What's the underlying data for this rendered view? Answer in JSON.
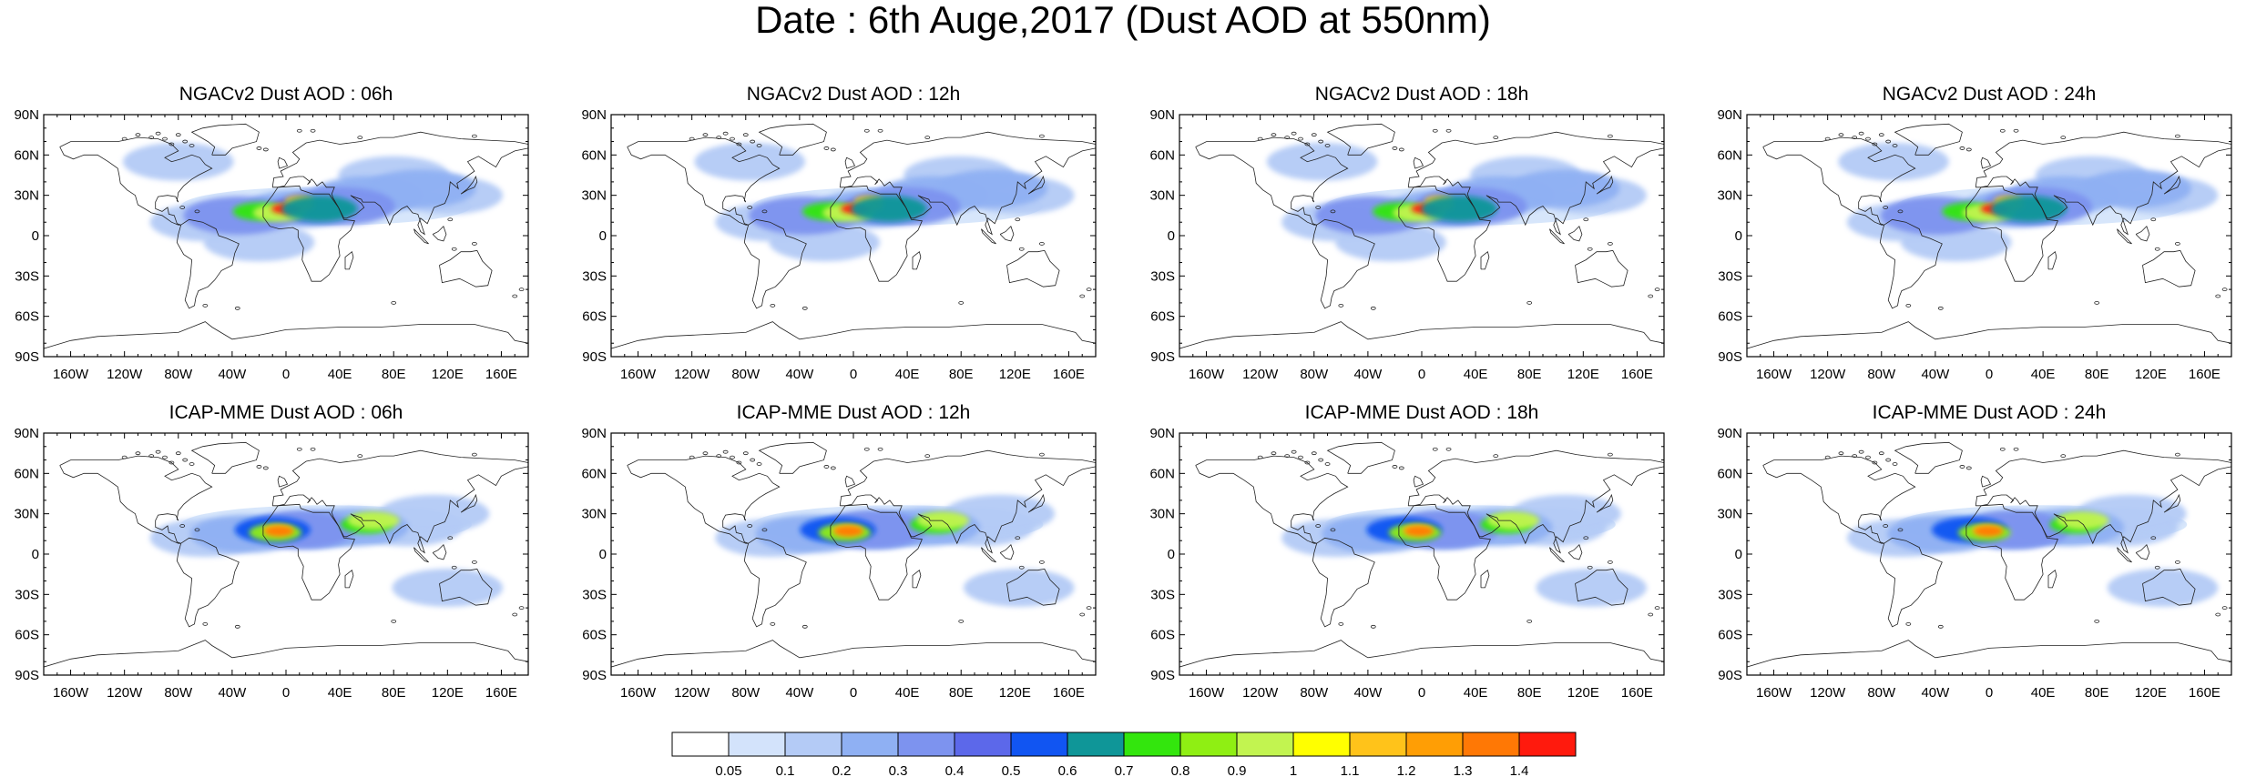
{
  "title": "Date : 6th Auge,2017 (Dust AOD at 550nm)",
  "panels": [
    {
      "title": "NGACv2 Dust AOD : 06h",
      "model": "ngac",
      "shift": 0
    },
    {
      "title": "NGACv2 Dust AOD : 12h",
      "model": "ngac",
      "shift": 3
    },
    {
      "title": "NGACv2 Dust AOD : 18h",
      "model": "ngac",
      "shift": 6
    },
    {
      "title": "NGACv2 Dust AOD : 24h",
      "model": "ngac",
      "shift": 9
    },
    {
      "title": "ICAP-MME Dust AOD : 06h",
      "model": "icap",
      "shift": 0
    },
    {
      "title": "ICAP-MME Dust AOD : 12h",
      "model": "icap",
      "shift": 3
    },
    {
      "title": "ICAP-MME Dust AOD : 18h",
      "model": "icap",
      "shift": 6
    },
    {
      "title": "ICAP-MME Dust AOD : 24h",
      "model": "icap",
      "shift": 9
    }
  ],
  "lat_labels": [
    "90N",
    "60N",
    "30N",
    "0",
    "30S",
    "60S",
    "90S"
  ],
  "lon_labels": [
    "160W",
    "120W",
    "80W",
    "40W",
    "0",
    "40E",
    "80E",
    "120E",
    "160E"
  ],
  "colorbar": {
    "labels": [
      "0.05",
      "0.1",
      "0.2",
      "0.3",
      "0.4",
      "0.5",
      "0.6",
      "0.7",
      "0.8",
      "0.9",
      "1",
      "1.1",
      "1.2",
      "1.3",
      "1.4"
    ],
    "colors": [
      "#ffffff",
      "#d3e3fb",
      "#b4cbf6",
      "#8fb0f3",
      "#7d93ef",
      "#5c68ea",
      "#1155f2",
      "#0f9698",
      "#33e60d",
      "#8fef13",
      "#c2f450",
      "#ffff00",
      "#ffc31a",
      "#ff9e05",
      "#ff7805",
      "#ff1a0d"
    ]
  },
  "dust_fields": {
    "ngac": [
      {
        "lon": -60,
        "lat": 10,
        "level": 1
      },
      {
        "lon": -80,
        "lat": 55,
        "level": 1
      },
      {
        "lon": 80,
        "lat": 45,
        "level": 1
      },
      {
        "lon": 120,
        "lat": 30,
        "level": 1
      },
      {
        "lon": -20,
        "lat": -5,
        "level": 1
      },
      {
        "lon": 10,
        "lat": 20,
        "level": 2
      },
      {
        "lon": 60,
        "lat": 30,
        "level": 2
      },
      {
        "lon": 100,
        "lat": 35,
        "level": 2
      },
      {
        "lon": -35,
        "lat": 15,
        "level": 3
      },
      {
        "lon": 15,
        "lat": 20,
        "level": 4
      },
      {
        "lon": 40,
        "lat": 22,
        "level": 3
      },
      {
        "lon": -20,
        "lat": 18,
        "level": 7
      },
      {
        "lon": -5,
        "lat": 17,
        "level": 9
      },
      {
        "lon": 10,
        "lat": 22,
        "level": 11
      },
      {
        "lon": 0,
        "lat": 20,
        "level": 14
      },
      {
        "lon": 10,
        "lat": 26,
        "level": 11
      },
      {
        "lon": 25,
        "lat": 20,
        "level": 6
      }
    ],
    "icap": [
      {
        "lon": -60,
        "lat": 12,
        "level": 1
      },
      {
        "lon": 90,
        "lat": 20,
        "level": 1
      },
      {
        "lon": 110,
        "lat": 30,
        "level": 1
      },
      {
        "lon": 120,
        "lat": -25,
        "level": 1
      },
      {
        "lon": 20,
        "lat": 18,
        "level": 2
      },
      {
        "lon": 50,
        "lat": 20,
        "level": 2
      },
      {
        "lon": -30,
        "lat": 15,
        "level": 2
      },
      {
        "lon": 10,
        "lat": 18,
        "level": 3
      },
      {
        "lon": -10,
        "lat": 18,
        "level": 5
      },
      {
        "lon": -8,
        "lat": 16,
        "level": 8
      },
      {
        "lon": -6,
        "lat": 18,
        "level": 11
      },
      {
        "lon": -5,
        "lat": 17,
        "level": 13
      },
      {
        "lon": 60,
        "lat": 22,
        "level": 7
      },
      {
        "lon": 65,
        "lat": 25,
        "level": 9
      }
    ]
  }
}
